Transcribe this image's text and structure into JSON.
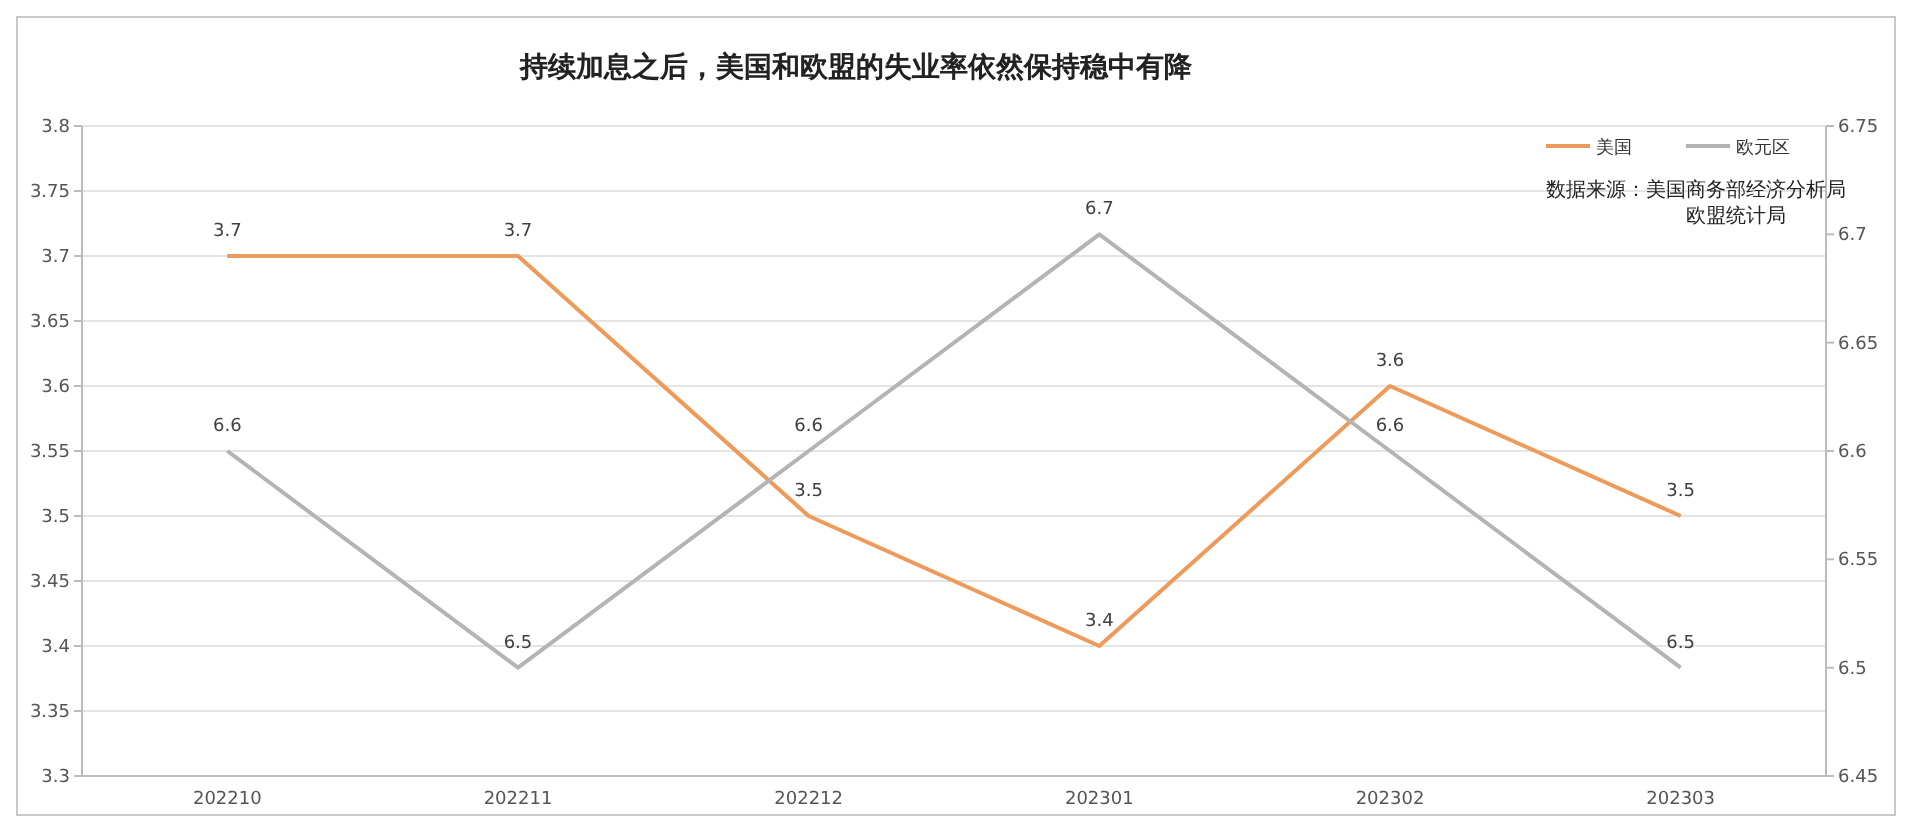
{
  "chart_data": {
    "type": "line",
    "title": "持续加息之后，美国和欧盟的失业率依然保持稳中有降",
    "categories": [
      "202210",
      "202211",
      "202212",
      "202301",
      "202302",
      "202303"
    ],
    "series": [
      {
        "name": "美国",
        "color": "#ed9a5a",
        "values": [
          3.7,
          3.7,
          3.5,
          3.4,
          3.6,
          3.5
        ]
      },
      {
        "name": "欧元区",
        "color": "#b4b4b4",
        "values": [
          6.6,
          6.5,
          6.6,
          6.7,
          6.6,
          6.5
        ],
        "axis": "y2"
      }
    ],
    "ylim": [
      3.3,
      3.8
    ],
    "yticks": [
      3.3,
      3.35,
      3.4,
      3.45,
      3.5,
      3.55,
      3.6,
      3.65,
      3.7,
      3.75,
      3.8
    ],
    "y2lim": [
      6.45,
      6.75
    ],
    "y2ticks": [
      6.45,
      6.5,
      6.55,
      6.6,
      6.65,
      6.7,
      6.75
    ],
    "grid": "y",
    "legend": "top right",
    "data_labels": true,
    "marker": "none",
    "line_style": "solid",
    "annotations": [
      "数据来源：美国商务部经济分析局",
      "欧盟统计局"
    ]
  }
}
